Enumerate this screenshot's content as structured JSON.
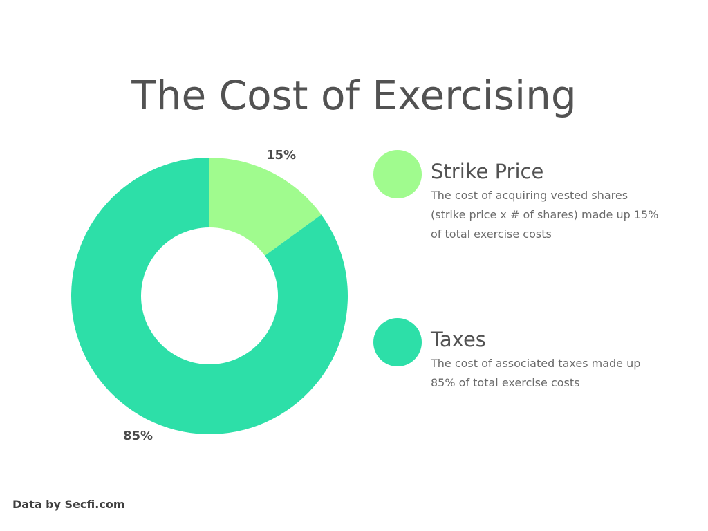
{
  "title": "The Cost of Exercising",
  "source": "Data by Secfi.com",
  "legend": [
    {
      "name": "Strike Price",
      "description": "The cost of acquiring vested shares (strike price x # of shares) made up 15% of total exercise costs",
      "color": "#a0fb8e"
    },
    {
      "name": "Taxes",
      "description": "The cost of associated taxes made up 85% of total exercise costs",
      "color": "#2ddfa8"
    }
  ],
  "chart_data": {
    "type": "pie",
    "variant": "donut",
    "title": "The Cost of Exercising",
    "categories": [
      "Strike Price",
      "Taxes"
    ],
    "values": [
      15,
      85
    ],
    "labels": [
      "15%",
      "85%"
    ],
    "colors": [
      "#a0fb8e",
      "#2ddfa8"
    ],
    "legend_position": "right"
  }
}
